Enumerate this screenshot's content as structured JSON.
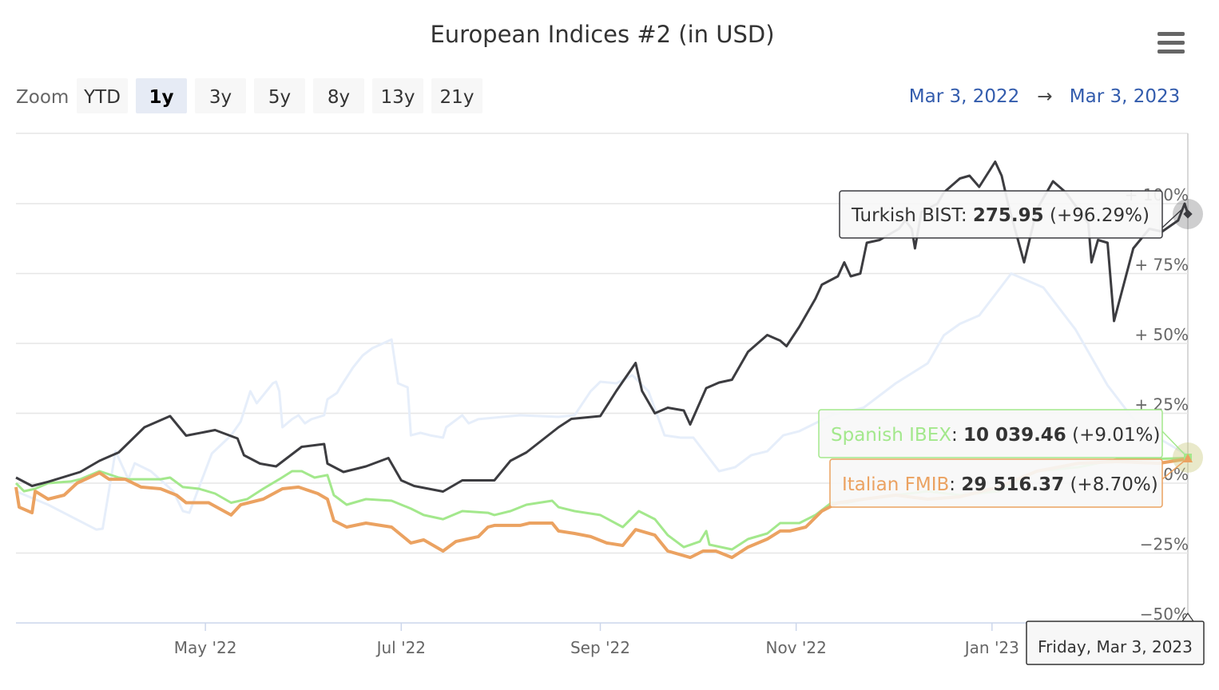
{
  "title": "European Indices #2 (in USD)",
  "menu_icon": "hamburger-menu-icon",
  "range_selector": {
    "label": "Zoom",
    "buttons": [
      "YTD",
      "1y",
      "3y",
      "5y",
      "8y",
      "13y",
      "21y"
    ],
    "selected": "1y"
  },
  "date_range": {
    "from": "Mar 3, 2022",
    "arrow": "→",
    "to": "Mar 3, 2023"
  },
  "tooltip": {
    "date": "Friday, Mar 3, 2023",
    "items": [
      {
        "name": "Turkish BIST",
        "value": "275.95",
        "change": "(+96.29%)"
      },
      {
        "name": "Spanish IBEX",
        "value": "10 039.46",
        "change": "(+9.01%)"
      },
      {
        "name": "Italian FMIB",
        "value": "29 516.37",
        "change": "(+8.70%)"
      }
    ]
  },
  "chart_data": {
    "type": "line",
    "title": "European Indices #2 (in USD)",
    "x_start": "2022-03-03",
    "x_unit": "days since start",
    "xlim": [
      0,
      365
    ],
    "ylim": [
      -50,
      112
    ],
    "y_ticks": [
      -50,
      -25,
      0,
      25,
      50,
      75,
      100
    ],
    "y_tick_labels": [
      "−50%",
      "−25%",
      "0%",
      "+ 25%",
      "+ 50%",
      "+ 75%",
      "+ 100%"
    ],
    "x_ticks": [
      59,
      120,
      182,
      243,
      304
    ],
    "x_tick_labels": [
      "May '22",
      "Jul '22",
      "Sep '22",
      "Nov '22",
      "Jan '23"
    ],
    "grid": true,
    "series": [
      {
        "color": "#e6eefa",
        "faded": true,
        "values": [
          [
            0,
            -2.9
          ],
          [
            10,
            -7.7
          ],
          [
            25,
            -16.6
          ],
          [
            27,
            -16.3
          ],
          [
            31,
            11.4
          ],
          [
            35,
            1.4
          ],
          [
            37,
            7.1
          ],
          [
            42,
            4.3
          ],
          [
            49,
            -2.9
          ],
          [
            52,
            -10
          ],
          [
            54,
            -10.6
          ],
          [
            61,
            10.6
          ],
          [
            67,
            17.1
          ],
          [
            70,
            22
          ],
          [
            73,
            32.9
          ],
          [
            75,
            28.6
          ],
          [
            80,
            35.7
          ],
          [
            81,
            36.3
          ],
          [
            82,
            32.9
          ],
          [
            83,
            20
          ],
          [
            86,
            22.9
          ],
          [
            88,
            24.3
          ],
          [
            90,
            21.4
          ],
          [
            92,
            22.9
          ],
          [
            96,
            24.3
          ],
          [
            97,
            30
          ],
          [
            100,
            32.3
          ],
          [
            101,
            34.3
          ],
          [
            105,
            41.4
          ],
          [
            108,
            45.7
          ],
          [
            111,
            48.3
          ],
          [
            117,
            51.4
          ],
          [
            119,
            35.7
          ],
          [
            122,
            34.3
          ],
          [
            123,
            17.1
          ],
          [
            126,
            18
          ],
          [
            129,
            17.1
          ],
          [
            133,
            16.3
          ],
          [
            134,
            20
          ],
          [
            139,
            24.3
          ],
          [
            141,
            21.4
          ],
          [
            144,
            22.9
          ],
          [
            157,
            24.3
          ],
          [
            169,
            23.7
          ],
          [
            174,
            24.3
          ],
          [
            179,
            32.9
          ],
          [
            182,
            36.3
          ],
          [
            187,
            35.7
          ],
          [
            192,
            38.6
          ],
          [
            197,
            32.9
          ],
          [
            202,
            17.1
          ],
          [
            207,
            16.3
          ],
          [
            211,
            16.3
          ],
          [
            219,
            4.3
          ],
          [
            224,
            5.7
          ],
          [
            229,
            10
          ],
          [
            234,
            11.4
          ],
          [
            239,
            17.1
          ],
          [
            244,
            18.6
          ],
          [
            254,
            24.3
          ],
          [
            264,
            27
          ],
          [
            274,
            35.7
          ],
          [
            284,
            42.9
          ],
          [
            289,
            52.9
          ],
          [
            294,
            57
          ],
          [
            300,
            60
          ],
          [
            310,
            75
          ],
          [
            320,
            70
          ],
          [
            330,
            55
          ],
          [
            340,
            35
          ],
          [
            350,
            20
          ],
          [
            365,
            10
          ]
        ]
      },
      {
        "name": "Spanish IBEX",
        "color": "#a3e88c",
        "values": [
          [
            0,
            0
          ],
          [
            2.5,
            -2.9
          ],
          [
            6,
            -2
          ],
          [
            10,
            0
          ],
          [
            17,
            0.6
          ],
          [
            20,
            1.4
          ],
          [
            26,
            4.3
          ],
          [
            32,
            2
          ],
          [
            35,
            1.4
          ],
          [
            45,
            1.4
          ],
          [
            48,
            2
          ],
          [
            52,
            -1.4
          ],
          [
            57,
            -2
          ],
          [
            62,
            -3.7
          ],
          [
            67,
            -7
          ],
          [
            72,
            -5.7
          ],
          [
            77,
            -2
          ],
          [
            82,
            1.4
          ],
          [
            86,
            4.3
          ],
          [
            89,
            4.3
          ],
          [
            93,
            2
          ],
          [
            97,
            2.9
          ],
          [
            99,
            -4.3
          ],
          [
            103,
            -7.7
          ],
          [
            109,
            -5.7
          ],
          [
            117,
            -6.3
          ],
          [
            123,
            -9.1
          ],
          [
            127,
            -11.4
          ],
          [
            133,
            -12.9
          ],
          [
            139,
            -10
          ],
          [
            147,
            -10.6
          ],
          [
            149,
            -11.4
          ],
          [
            154,
            -10
          ],
          [
            159,
            -7.7
          ],
          [
            167,
            -6.3
          ],
          [
            169,
            -8.6
          ],
          [
            174,
            -10
          ],
          [
            182,
            -11.4
          ],
          [
            189,
            -15.7
          ],
          [
            194,
            -10
          ],
          [
            199,
            -12.9
          ],
          [
            203,
            -18.6
          ],
          [
            208,
            -22.9
          ],
          [
            213,
            -20.9
          ],
          [
            215,
            -17.1
          ],
          [
            216,
            -22
          ],
          [
            223,
            -23.7
          ],
          [
            228,
            -20
          ],
          [
            234,
            -18
          ],
          [
            238,
            -14.3
          ],
          [
            244,
            -14.3
          ],
          [
            249,
            -11.4
          ],
          [
            254,
            -7
          ],
          [
            259,
            -7
          ],
          [
            264,
            -5.7
          ],
          [
            274,
            -4.3
          ],
          [
            284,
            -2.9
          ],
          [
            294,
            -4.3
          ],
          [
            306,
            -2.9
          ],
          [
            318,
            4.3
          ],
          [
            331,
            5.7
          ],
          [
            343,
            8.6
          ],
          [
            353,
            8.6
          ],
          [
            365,
            9.01
          ]
        ]
      },
      {
        "name": "Italian FMIB",
        "color": "#eba261",
        "values": [
          [
            0,
            -1.4
          ],
          [
            1,
            -8.6
          ],
          [
            5,
            -10.6
          ],
          [
            6,
            -2.9
          ],
          [
            10,
            -5.7
          ],
          [
            15,
            -4.3
          ],
          [
            19,
            0
          ],
          [
            26,
            3.7
          ],
          [
            29,
            1.4
          ],
          [
            34,
            1.4
          ],
          [
            39,
            -1.4
          ],
          [
            45,
            -2
          ],
          [
            50,
            -4.3
          ],
          [
            53,
            -7
          ],
          [
            60,
            -7
          ],
          [
            67,
            -11.4
          ],
          [
            70,
            -7.7
          ],
          [
            77,
            -5.7
          ],
          [
            83,
            -2
          ],
          [
            88,
            -1.4
          ],
          [
            94,
            -3.7
          ],
          [
            97,
            -5.7
          ],
          [
            99,
            -13.4
          ],
          [
            103,
            -15.7
          ],
          [
            109,
            -14.3
          ],
          [
            117,
            -15.7
          ],
          [
            123,
            -21.4
          ],
          [
            127,
            -20.3
          ],
          [
            133,
            -24.3
          ],
          [
            137,
            -20.9
          ],
          [
            144,
            -19.1
          ],
          [
            147,
            -15.7
          ],
          [
            149,
            -15.1
          ],
          [
            157,
            -15.1
          ],
          [
            160,
            -14.3
          ],
          [
            167,
            -14.3
          ],
          [
            169,
            -17.1
          ],
          [
            174,
            -18
          ],
          [
            179,
            -19.1
          ],
          [
            184,
            -21.4
          ],
          [
            189,
            -22.3
          ],
          [
            193,
            -16.6
          ],
          [
            199,
            -18.6
          ],
          [
            203,
            -24.3
          ],
          [
            210,
            -26.6
          ],
          [
            214,
            -24.3
          ],
          [
            218,
            -24.3
          ],
          [
            223,
            -26.6
          ],
          [
            228,
            -22.9
          ],
          [
            234,
            -20
          ],
          [
            238,
            -17.1
          ],
          [
            241,
            -17.1
          ],
          [
            246,
            -15.7
          ],
          [
            251,
            -10
          ],
          [
            256,
            -7
          ],
          [
            264,
            -5.7
          ],
          [
            274,
            -4.3
          ],
          [
            284,
            -5.7
          ],
          [
            294,
            -4.9
          ],
          [
            306,
            -1.4
          ],
          [
            318,
            4.3
          ],
          [
            331,
            7.1
          ],
          [
            343,
            7.7
          ],
          [
            356,
            7.1
          ],
          [
            365,
            8.7
          ]
        ]
      },
      {
        "name": "Turkish BIST",
        "color": "#3c3c40",
        "values": [
          [
            0,
            2
          ],
          [
            5,
            -1
          ],
          [
            10,
            0.5
          ],
          [
            20,
            4
          ],
          [
            26,
            8
          ],
          [
            32,
            11
          ],
          [
            40,
            20
          ],
          [
            48,
            24
          ],
          [
            53,
            17
          ],
          [
            62,
            19
          ],
          [
            69,
            16
          ],
          [
            71,
            10
          ],
          [
            76,
            7
          ],
          [
            81,
            6
          ],
          [
            89,
            13
          ],
          [
            96,
            14
          ],
          [
            97,
            7
          ],
          [
            102,
            4
          ],
          [
            109,
            6
          ],
          [
            116,
            9
          ],
          [
            120,
            1
          ],
          [
            124,
            -1
          ],
          [
            133,
            -3
          ],
          [
            139,
            1
          ],
          [
            144,
            1
          ],
          [
            149,
            1
          ],
          [
            154,
            8
          ],
          [
            159,
            11
          ],
          [
            169,
            20
          ],
          [
            173,
            23
          ],
          [
            182,
            24
          ],
          [
            187,
            33
          ],
          [
            193,
            43
          ],
          [
            195,
            33
          ],
          [
            199,
            25
          ],
          [
            203,
            27
          ],
          [
            208,
            26
          ],
          [
            210,
            21
          ],
          [
            215,
            34
          ],
          [
            219,
            36
          ],
          [
            223,
            37
          ],
          [
            228,
            47
          ],
          [
            234,
            53
          ],
          [
            238,
            51
          ],
          [
            240,
            49
          ],
          [
            244,
            56
          ],
          [
            249,
            66
          ],
          [
            251,
            71
          ],
          [
            256,
            74
          ],
          [
            258,
            79
          ],
          [
            260,
            74
          ],
          [
            263,
            75
          ],
          [
            265,
            86
          ],
          [
            269,
            87
          ],
          [
            275,
            91
          ],
          [
            277,
            94
          ],
          [
            279,
            91
          ],
          [
            280,
            84
          ],
          [
            282,
            97
          ],
          [
            287,
            100
          ],
          [
            289,
            104
          ],
          [
            294,
            109
          ],
          [
            297,
            110
          ],
          [
            300,
            106
          ],
          [
            305,
            115
          ],
          [
            307,
            110
          ],
          [
            309,
            100
          ],
          [
            314,
            79
          ],
          [
            318,
            98
          ],
          [
            323,
            108
          ],
          [
            327,
            104
          ],
          [
            334,
            93
          ],
          [
            335,
            79
          ],
          [
            337,
            87
          ],
          [
            340,
            86
          ],
          [
            342,
            58
          ],
          [
            348,
            84
          ],
          [
            353,
            91
          ],
          [
            357,
            90
          ],
          [
            362,
            94
          ],
          [
            364,
            100
          ],
          [
            365,
            96.29
          ]
        ]
      }
    ]
  }
}
